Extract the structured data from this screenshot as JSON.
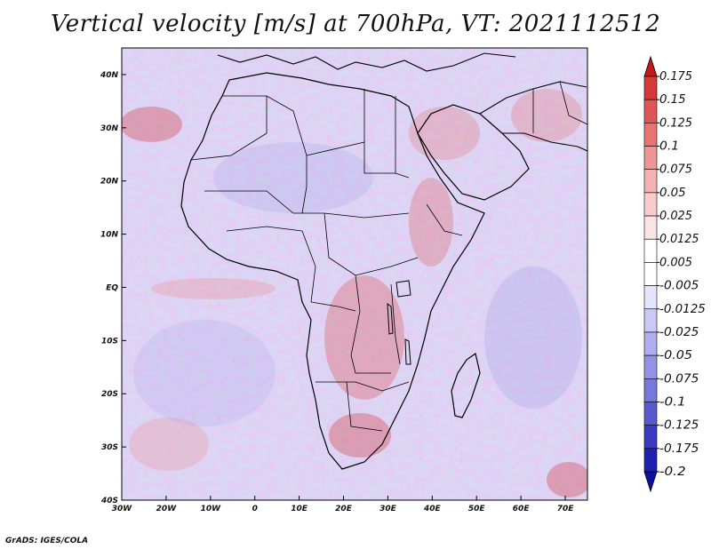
{
  "title": "Vertical velocity [m/s] at 700hPa, VT: 2021112512",
  "credit": "GrADS: IGES/COLA",
  "map": {
    "lon_range": [
      -30,
      75
    ],
    "lat_range": [
      -40,
      45
    ],
    "x_ticks": [
      "30W",
      "20W",
      "10W",
      "0",
      "10E",
      "20E",
      "30E",
      "40E",
      "50E",
      "60E",
      "70E"
    ],
    "x_tick_values": [
      -30,
      -20,
      -10,
      0,
      10,
      20,
      30,
      40,
      50,
      60,
      70
    ],
    "y_ticks": [
      "40N",
      "30N",
      "20N",
      "10N",
      "EQ",
      "10S",
      "20S",
      "30S",
      "40S"
    ],
    "y_tick_values": [
      40,
      30,
      20,
      10,
      0,
      -10,
      -20,
      -30,
      -40
    ],
    "colors": {
      "background_land": "#e9e4f4",
      "background_sea": "#dad8f4",
      "coast": "#000000"
    }
  },
  "colorbar": {
    "labels": [
      "0.175",
      "0.15",
      "0.125",
      "0.1",
      "0.075",
      "0.05",
      "0.025",
      "0.0125",
      "0.005",
      "-0.005",
      "-0.0125",
      "-0.025",
      "-0.05",
      "-0.075",
      "-0.1",
      "-0.125",
      "-0.175",
      "-0.2"
    ],
    "colors": [
      "#c11a1a",
      "#d43838",
      "#e05555",
      "#e87474",
      "#ef9595",
      "#f4b3b3",
      "#f8cccc",
      "#fbe3e3",
      "#ffffff",
      "#ffffff",
      "#e4e4fa",
      "#c9c9f4",
      "#afafee",
      "#9393e6",
      "#7777dc",
      "#5858d0",
      "#3a3ac2",
      "#2020b0",
      "#1010a0"
    ]
  }
}
